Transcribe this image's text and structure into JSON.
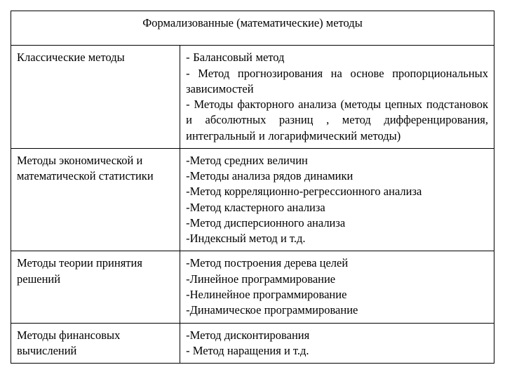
{
  "title": "Формализованные (математические) методы",
  "rows": [
    {
      "left": "Классические методы",
      "right": "- Балансовый метод\n- Метод прогнозирования на основе пропорциональных зависимостей\n- Методы факторного анализа (методы цепных подстановок и абсолютных разниц , метод дифференцирования, интегральный и логарифмический методы)"
    },
    {
      "left": "Методы экономической и математической статистики",
      "right": "-Метод средних величин\n-Методы анализа рядов динамики\n-Метод корреляционно-регрессионного анализа\n-Метод кластерного анализа\n-Метод дисперсионного анализа\n-Индексный метод и т.д."
    },
    {
      "left": "Методы теории принятия решений",
      "right": "-Метод построения дерева целей\n-Линейное программирование\n-Нелинейное программирование\n-Динамическое программирование"
    },
    {
      "left": "Методы финансовых вычислений",
      "right": "-Метод дисконтирования\n- Метод наращения и т.д."
    }
  ],
  "styling": {
    "font_family": "Times New Roman",
    "body_font_size_pt": 12,
    "text_color": "#000000",
    "border_color": "#000000",
    "background_color": "#ffffff",
    "col_left_width_pct": 35,
    "col_right_width_pct": 65,
    "row0_justify": true
  }
}
